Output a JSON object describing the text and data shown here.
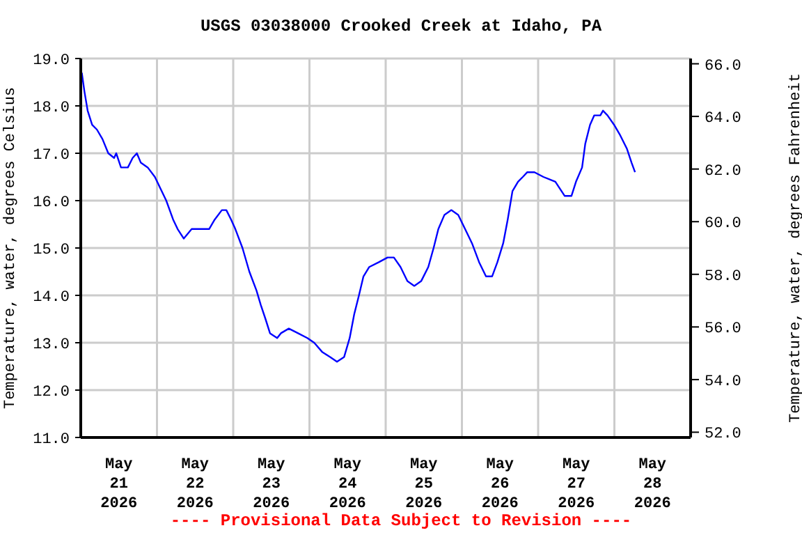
{
  "chart_data": {
    "type": "line",
    "title": "USGS 03038000 Crooked Creek at Idaho, PA",
    "ylabel": "Temperature, water, degrees Celsius",
    "y2label": "Temperature, water, degrees Fahrenheit",
    "annotations": [
      "---- Provisional Data Subject to Revision ----"
    ],
    "x": [
      "2026-05-21T00:20",
      "2026-05-21T01:10",
      "2026-05-21T02:10",
      "2026-05-21T03:35",
      "2026-05-21T05:05",
      "2026-05-21T06:50",
      "2026-05-21T08:40",
      "2026-05-21T10:30",
      "2026-05-21T11:10",
      "2026-05-21T12:40",
      "2026-05-21T14:50",
      "2026-05-21T16:20",
      "2026-05-21T17:40",
      "2026-05-21T18:55",
      "2026-05-21T21:05",
      "2026-05-21T23:20",
      "2026-05-22T01:30",
      "2026-05-22T02:55",
      "2026-05-22T05:05",
      "2026-05-22T06:30",
      "2026-05-22T08:25",
      "2026-05-22T10:55",
      "2026-05-22T16:25",
      "2026-05-22T18:10",
      "2026-05-22T20:25",
      "2026-05-22T21:50",
      "2026-05-22T23:20",
      "2026-05-23T00:40",
      "2026-05-23T02:55",
      "2026-05-23T05:05",
      "2026-05-23T07:20",
      "2026-05-23T08:40",
      "2026-05-23T10:10",
      "2026-05-23T11:35",
      "2026-05-23T13:50",
      "2026-05-23T15:00",
      "2026-05-23T17:30",
      "2026-05-23T20:25",
      "2026-05-23T23:20",
      "2026-05-24T01:30",
      "2026-05-24T04:05",
      "2026-05-24T06:30",
      "2026-05-24T08:40",
      "2026-05-24T10:55",
      "2026-05-24T12:40",
      "2026-05-24T14:05",
      "2026-05-24T15:35",
      "2026-05-24T17:00",
      "2026-05-24T18:50",
      "2026-05-24T21:50",
      "2026-05-25T00:35",
      "2026-05-25T02:35",
      "2026-05-25T04:40",
      "2026-05-25T06:50",
      "2026-05-25T09:00",
      "2026-05-25T11:10",
      "2026-05-25T13:25",
      "2026-05-25T15:05",
      "2026-05-25T16:35",
      "2026-05-25T18:30",
      "2026-05-25T20:40",
      "2026-05-25T22:50",
      "2026-05-26T01:00",
      "2026-05-26T03:10",
      "2026-05-26T05:25",
      "2026-05-26T07:35",
      "2026-05-26T09:30",
      "2026-05-26T11:10",
      "2026-05-26T13:00",
      "2026-05-26T14:25",
      "2026-05-26T15:55",
      "2026-05-26T17:40",
      "2026-05-26T19:10",
      "2026-05-26T20:35",
      "2026-05-26T22:50",
      "2026-05-27T01:40",
      "2026-05-27T05:25",
      "2026-05-27T08:20",
      "2026-05-27T10:30",
      "2026-05-27T11:55",
      "2026-05-27T13:50",
      "2026-05-27T14:50",
      "2026-05-27T16:20",
      "2026-05-27T17:40",
      "2026-05-27T19:35",
      "2026-05-27T20:25",
      "2026-05-27T21:50",
      "2026-05-27T23:55",
      "2026-05-28T01:40",
      "2026-05-28T03:55",
      "2026-05-28T05:25",
      "2026-05-28T06:30"
    ],
    "series": [
      {
        "color": "#0000ff",
        "values": [
          18.7,
          18.3,
          17.9,
          17.6,
          17.5,
          17.3,
          17.0,
          16.9,
          17.0,
          16.7,
          16.7,
          16.9,
          17.0,
          16.8,
          16.7,
          16.5,
          16.2,
          16.0,
          15.6,
          15.4,
          15.2,
          15.4,
          15.4,
          15.6,
          15.8,
          15.8,
          15.6,
          15.4,
          15.0,
          14.5,
          14.1,
          13.8,
          13.5,
          13.2,
          13.1,
          13.2,
          13.3,
          13.2,
          13.1,
          13.0,
          12.8,
          12.7,
          12.6,
          12.7,
          13.1,
          13.6,
          14.0,
          14.4,
          14.6,
          14.7,
          14.8,
          14.8,
          14.6,
          14.3,
          14.2,
          14.3,
          14.6,
          15.0,
          15.4,
          15.7,
          15.8,
          15.7,
          15.4,
          15.1,
          14.7,
          14.4,
          14.4,
          14.7,
          15.1,
          15.6,
          16.2,
          16.4,
          16.5,
          16.6,
          16.6,
          16.5,
          16.4,
          16.1,
          16.1,
          16.4,
          16.7,
          17.2,
          17.6,
          17.8,
          17.8,
          17.9,
          17.8,
          17.6,
          17.4,
          17.1,
          16.8,
          16.6
        ]
      }
    ],
    "xlim": [
      "2026-05-21T00:00",
      "2026-05-29T00:00"
    ],
    "xticks": [
      {
        "value": "2026-05-21T12:00",
        "label": "May\n21\n2026"
      },
      {
        "value": "2026-05-22T00:00",
        "label": null
      },
      {
        "value": "2026-05-22T12:00",
        "label": "May\n22\n2026"
      },
      {
        "value": "2026-05-23T00:00",
        "label": null
      },
      {
        "value": "2026-05-23T12:00",
        "label": "May\n23\n2026"
      },
      {
        "value": "2026-05-24T00:00",
        "label": null
      },
      {
        "value": "2026-05-24T12:00",
        "label": "May\n24\n2026"
      },
      {
        "value": "2026-05-25T00:00",
        "label": null
      },
      {
        "value": "2026-05-25T12:00",
        "label": "May\n25\n2026"
      },
      {
        "value": "2026-05-26T00:00",
        "label": null
      },
      {
        "value": "2026-05-26T12:00",
        "label": "May\n26\n2026"
      },
      {
        "value": "2026-05-27T00:00",
        "label": null
      },
      {
        "value": "2026-05-27T12:00",
        "label": "May\n27\n2026"
      },
      {
        "value": "2026-05-28T00:00",
        "label": null
      },
      {
        "value": "2026-05-28T12:00",
        "label": "May\n28\n2026"
      }
    ],
    "ylim": [
      11,
      19
    ],
    "yticks": [
      {
        "value": 11,
        "label": "11.0"
      },
      {
        "value": 12,
        "label": "12.0"
      },
      {
        "value": 13,
        "label": "13.0"
      },
      {
        "value": 14,
        "label": "14.0"
      },
      {
        "value": 15,
        "label": "15.0"
      },
      {
        "value": 16,
        "label": "16.0"
      },
      {
        "value": 17,
        "label": "17.0"
      },
      {
        "value": 18,
        "label": "18.0"
      },
      {
        "value": 19,
        "label": "19.0"
      }
    ],
    "y2lim": [
      51.8,
      66.2
    ],
    "y2ticks": [
      {
        "value": 52,
        "label": "52.0"
      },
      {
        "value": 54,
        "label": "54.0"
      },
      {
        "value": 56,
        "label": "56.0"
      },
      {
        "value": 58,
        "label": "58.0"
      },
      {
        "value": 60,
        "label": "60.0"
      },
      {
        "value": 62,
        "label": "62.0"
      },
      {
        "value": 64,
        "label": "64.0"
      },
      {
        "value": 66,
        "label": "66.0"
      }
    ],
    "grid": true,
    "legend": false,
    "marker": "none",
    "line_style": "solid"
  }
}
